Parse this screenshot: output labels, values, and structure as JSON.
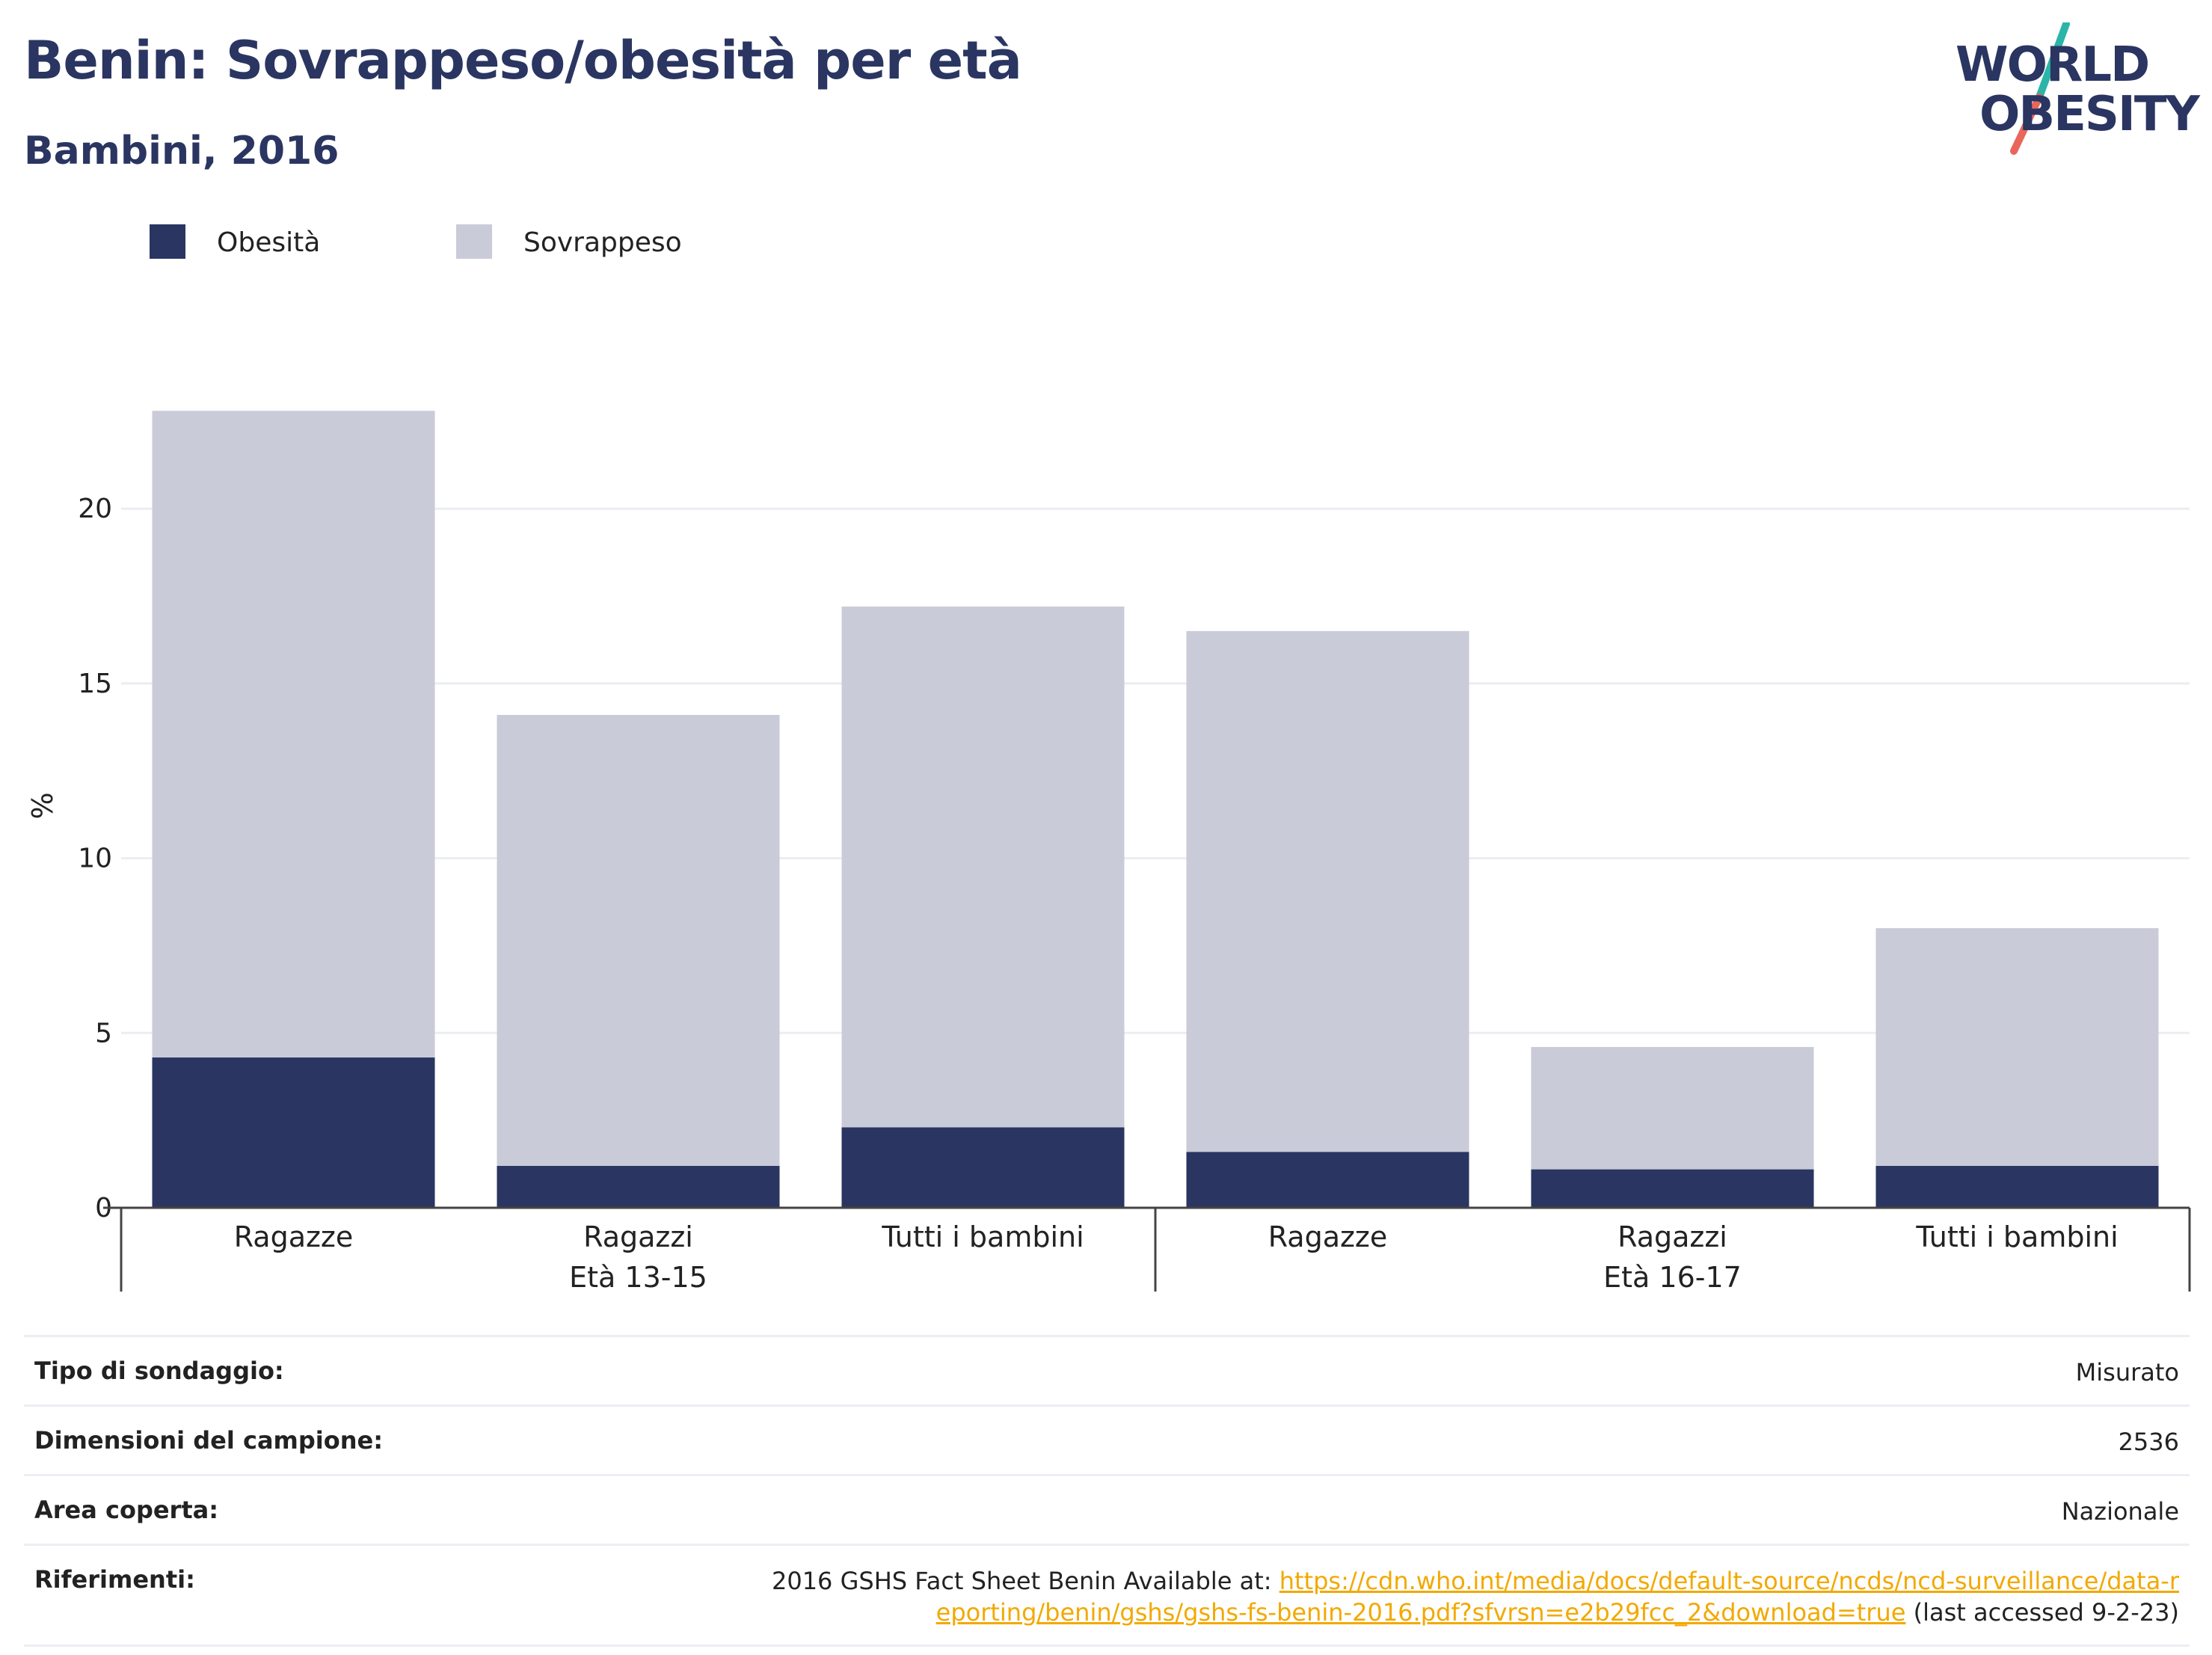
{
  "header": {
    "title": "Benin: Sovrappeso/obesità per età",
    "subtitle": "Bambini, 2016"
  },
  "logo": {
    "line1": "WORLD",
    "line2": "OBESITY",
    "colors": {
      "text": "#2a3561",
      "slash_top": "#2bb5a8",
      "slash_bottom": "#e8665a"
    }
  },
  "chart_data": {
    "type": "bar",
    "stacked": true,
    "title": "",
    "xlabel": "",
    "ylabel": "%",
    "ylim": [
      0,
      23
    ],
    "yticks": [
      0,
      5,
      10,
      15,
      20
    ],
    "grid": true,
    "legend_position": "top-left",
    "categories": [
      "Ragazze",
      "Ragazzi",
      "Tutti i bambini",
      "Ragazze",
      "Ragazzi",
      "Tutti i bambini"
    ],
    "groups": [
      {
        "label": "Età 13-15",
        "start": 0,
        "end": 2
      },
      {
        "label": "Età 16-17",
        "start": 3,
        "end": 5
      }
    ],
    "series": [
      {
        "name": "Obesità",
        "color": "#2a3561",
        "values": [
          4.3,
          1.2,
          2.3,
          1.6,
          1.1,
          1.2
        ]
      },
      {
        "name": "Sovrappeso",
        "color": "#cacbd8",
        "values": [
          18.5,
          12.9,
          14.9,
          14.9,
          3.5,
          6.8
        ]
      }
    ]
  },
  "info": {
    "rows": [
      {
        "label": "Tipo di sondaggio:",
        "value": "Misurato"
      },
      {
        "label": "Dimensioni del campione:",
        "value": "2536"
      },
      {
        "label": "Area coperta:",
        "value": "Nazionale"
      }
    ],
    "references": {
      "label": "Riferimenti:",
      "prefix": "2016 GSHS Fact Sheet Benin Available at: ",
      "link": "https://cdn.who.int/media/docs/default-source/ncds/ncd-surveillance/data-reporting/benin/gshs/gshs-fs-benin-2016.pdf?sfvrsn=e2b29fcc_2&download=true",
      "suffix": " (last accessed 9-2-23)"
    }
  }
}
